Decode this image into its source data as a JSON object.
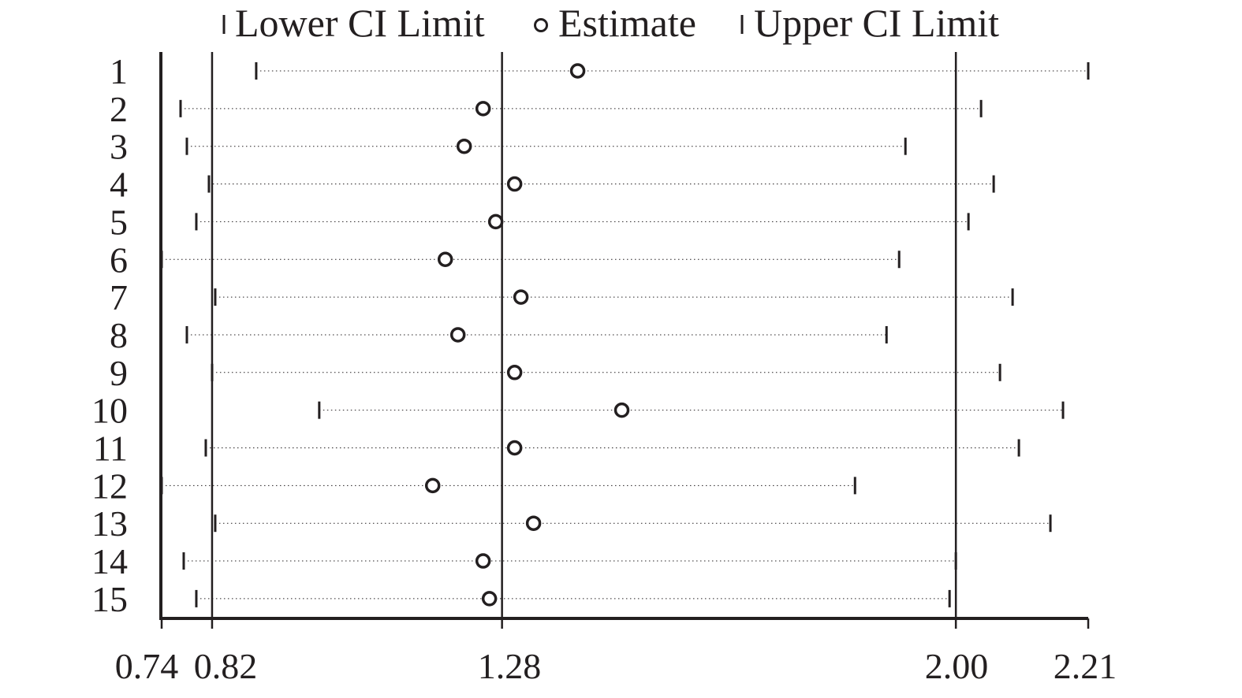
{
  "chart_data": {
    "type": "forest",
    "title": "",
    "xlabel": "",
    "ylabel": "",
    "legend": {
      "placement": "top",
      "entries": [
        {
          "label": "Lower CI Limit",
          "marker": "tick"
        },
        {
          "label": "Estimate",
          "marker": "circle"
        },
        {
          "label": "Upper CI Limit",
          "marker": "tick"
        }
      ]
    },
    "xlim": [
      0.74,
      2.21
    ],
    "reference_lines": [
      0.82,
      1.28,
      2.0
    ],
    "x_ticks": [
      {
        "value": 0.74,
        "label": "0.74"
      },
      {
        "value": 0.82,
        "label": "0.82"
      },
      {
        "value": 1.28,
        "label": "1.28"
      },
      {
        "value": 2.0,
        "label": "2.00"
      },
      {
        "value": 2.21,
        "label": "2.21"
      }
    ],
    "rows": [
      {
        "label": "1",
        "lower": 0.89,
        "estimate": 1.4,
        "upper": 2.21
      },
      {
        "label": "2",
        "lower": 0.77,
        "estimate": 1.25,
        "upper": 2.04
      },
      {
        "label": "3",
        "lower": 0.78,
        "estimate": 1.22,
        "upper": 1.92
      },
      {
        "label": "4",
        "lower": 0.815,
        "estimate": 1.3,
        "upper": 2.06
      },
      {
        "label": "5",
        "lower": 0.795,
        "estimate": 1.27,
        "upper": 2.02
      },
      {
        "label": "6",
        "lower": 0.74,
        "estimate": 1.19,
        "upper": 1.91
      },
      {
        "label": "7",
        "lower": 0.825,
        "estimate": 1.31,
        "upper": 2.09
      },
      {
        "label": "8",
        "lower": 0.78,
        "estimate": 1.21,
        "upper": 1.89
      },
      {
        "label": "9",
        "lower": 0.82,
        "estimate": 1.3,
        "upper": 2.07
      },
      {
        "label": "10",
        "lower": 0.99,
        "estimate": 1.47,
        "upper": 2.17
      },
      {
        "label": "11",
        "lower": 0.81,
        "estimate": 1.3,
        "upper": 2.1
      },
      {
        "label": "12",
        "lower": 0.74,
        "estimate": 1.17,
        "upper": 1.84
      },
      {
        "label": "13",
        "lower": 0.825,
        "estimate": 1.33,
        "upper": 2.15
      },
      {
        "label": "14",
        "lower": 0.775,
        "estimate": 1.25,
        "upper": 2.0
      },
      {
        "label": "15",
        "lower": 0.795,
        "estimate": 1.26,
        "upper": 1.99
      }
    ],
    "grid": false
  }
}
